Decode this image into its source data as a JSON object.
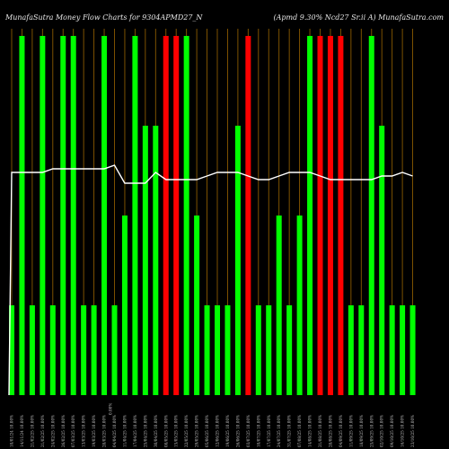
{
  "header": {
    "left": "MunafaSutra  Money Flow  Charts for 9304APMD27_N",
    "right": "(Apmd 9.30%  Ncd27 Sr.ii A) MunafaSutra.com"
  },
  "chart_data": {
    "type": "bar",
    "title": "MunafaSutra  Money Flow  Charts for 9304APMD27_N",
    "subtitle": "(Apmd 9.30%  Ncd27 Sr.ii A) MunafaSutra.com",
    "categories": [
      "10/01/24 10.00%",
      "14/11/24 10.00%",
      "21/02/25 10.00%",
      "21/02/25 10.00%",
      "24/02/25 10.00%",
      "26/02/25 10.00%",
      "07/03/25 10.00%",
      "13/03/25 10.00%",
      "19/03/25 10.00%",
      "28/03/25 10.00%",
      "04/04/25 10.00%",
      "11/04/25 10.00%",
      "17/04/25 10.00%",
      "25/04/25 10.00%",
      "30/04/25 10.00%",
      "08/05/25 10.00%",
      "15/05/25 10.00%",
      "22/05/25 10.00%",
      "29/05/25 10.00%",
      "05/06/25 10.00%",
      "12/06/25 10.00%",
      "19/06/25 10.00%",
      "26/06/25 10.00%",
      "03/07/25 10.00%",
      "10/07/25 10.00%",
      "17/07/25 10.00%",
      "24/07/25 10.00%",
      "31/07/25 10.00%",
      "07/08/25 10.00%",
      "14/08/25 10.00%",
      "21/08/25 10.00%",
      "28/08/25 10.00%",
      "04/09/25 10.00%",
      "11/09/25 10.00%",
      "18/09/25 10.00%",
      "25/09/25 10.00%",
      "02/10/25 10.00%",
      "09/10/25 10.00%",
      "16/10/25 10.00%",
      "23/10/25 10.00%"
    ],
    "series": [
      {
        "values": [
          1,
          4,
          1,
          4,
          1,
          4,
          4,
          1,
          1,
          4,
          1,
          2,
          4,
          3,
          3,
          4,
          4,
          4,
          2,
          1,
          1,
          1,
          3,
          4,
          1,
          1,
          2,
          1,
          2,
          4,
          4,
          4,
          4,
          1,
          1,
          4,
          3,
          1,
          1,
          1
        ],
        "colors": [
          "green",
          "green",
          "green",
          "green",
          "green",
          "green",
          "green",
          "green",
          "green",
          "green",
          "green",
          "green",
          "green",
          "green",
          "green",
          "red",
          "red",
          "green",
          "green",
          "green",
          "green",
          "green",
          "green",
          "red",
          "green",
          "green",
          "green",
          "green",
          "green",
          "green",
          "red",
          "red",
          "red",
          "green",
          "green",
          "green",
          "green",
          "green",
          "green",
          "green"
        ]
      },
      {
        "values": [
          0.62,
          0.62,
          0.62,
          0.62,
          0.63,
          0.63,
          0.63,
          0.63,
          0.63,
          0.63,
          0.64,
          0.59,
          0.59,
          0.59,
          0.62,
          0.6,
          0.6,
          0.6,
          0.6,
          0.61,
          0.62,
          0.62,
          0.62,
          0.61,
          0.6,
          0.6,
          0.61,
          0.62,
          0.62,
          0.62,
          0.61,
          0.6,
          0.6,
          0.6,
          0.6,
          0.6,
          0.61,
          0.61,
          0.62,
          0.61
        ]
      }
    ],
    "marker_label": "0.00%",
    "ylim": [
      0,
      4
    ],
    "grid": true,
    "colors": {
      "up": "#00ff00",
      "down": "#ff0000",
      "grid": "#8a5a00",
      "line": "#ffffff",
      "background": "#000000"
    }
  }
}
